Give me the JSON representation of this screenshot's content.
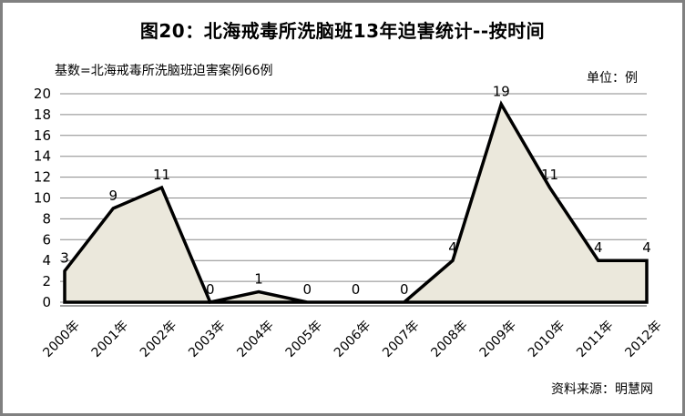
{
  "header": {
    "title": "图20：北海戒毒所洗脑班13年迫害统计--按时间",
    "subtitle": "基数=北海戒毒所洗脑班迫害案例66例",
    "unit_label": "单位：例"
  },
  "footer": {
    "source": "资料来源：明慧网"
  },
  "chart_data": {
    "type": "area",
    "title": "图20：北海戒毒所洗脑班13年迫害统计--按时间",
    "subtitle": "基数=北海戒毒所洗脑班迫害案例66例",
    "unit": "单位：例",
    "source": "资料来源：明慧网",
    "categories": [
      "2000年",
      "2001年",
      "2002年",
      "2003年",
      "2004年",
      "2005年",
      "2006年",
      "2007年",
      "2008年",
      "2009年",
      "2010年",
      "2011年",
      "2012年"
    ],
    "values": [
      3,
      9,
      11,
      0,
      1,
      0,
      0,
      0,
      4,
      19,
      11,
      4,
      4
    ],
    "xlabel": "",
    "ylabel": "",
    "ylim": [
      0,
      20
    ],
    "ytick_step": 2,
    "yticks": [
      0,
      2,
      4,
      6,
      8,
      10,
      12,
      14,
      16,
      18,
      20
    ],
    "grid": true,
    "legend": "none",
    "data_labels": true,
    "x_label_rotation": -45
  },
  "colors": {
    "area_fill": "#ebe8dc",
    "line": "#000000",
    "grid": "#8a8a8a",
    "axis": "#404040",
    "text": "#000000",
    "frame_border": "#808080",
    "background": "#ffffff"
  }
}
